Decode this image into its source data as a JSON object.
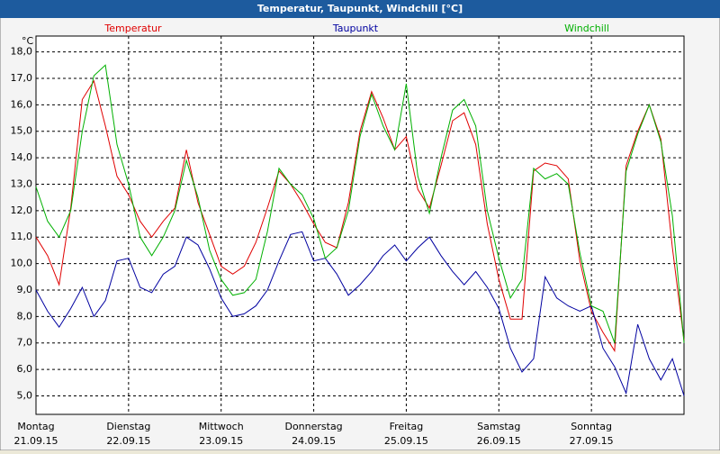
{
  "chart_data": {
    "type": "line",
    "title": "Temperatur, Taupunkt, Windchill [°C]",
    "y_unit": "°C",
    "x": [
      0,
      3,
      6,
      9,
      12,
      15,
      18,
      21,
      24,
      27,
      30,
      33,
      36,
      39,
      42,
      45,
      48,
      51,
      54,
      57,
      60,
      63,
      66,
      69,
      72,
      75,
      78,
      81,
      84,
      87,
      90,
      93,
      96,
      99,
      102,
      105,
      108,
      111,
      114,
      117,
      120,
      123,
      126,
      129,
      132,
      135,
      138,
      141,
      144,
      147,
      150,
      153,
      156,
      159,
      162,
      165,
      168
    ],
    "xlim": [
      0,
      168
    ],
    "xticks": [
      {
        "value": 0,
        "label": "Montag",
        "sublabel": "21.09.15"
      },
      {
        "value": 24,
        "label": "Dienstag",
        "sublabel": "22.09.15"
      },
      {
        "value": 48,
        "label": "Mittwoch",
        "sublabel": "23.09.15"
      },
      {
        "value": 72,
        "label": "Donnerstag",
        "sublabel": "24.09.15"
      },
      {
        "value": 96,
        "label": "Freitag",
        "sublabel": "25.09.15"
      },
      {
        "value": 120,
        "label": "Samstag",
        "sublabel": "26.09.15"
      },
      {
        "value": 144,
        "label": "Sonntag",
        "sublabel": "27.09.15"
      }
    ],
    "ylim": [
      4.3,
      18.6
    ],
    "yticks": [
      {
        "value": 5,
        "label": "5,0"
      },
      {
        "value": 6,
        "label": "6,0"
      },
      {
        "value": 7,
        "label": "7,0"
      },
      {
        "value": 8,
        "label": "8,0"
      },
      {
        "value": 9,
        "label": "9,0"
      },
      {
        "value": 10,
        "label": "10,0"
      },
      {
        "value": 11,
        "label": "11,0"
      },
      {
        "value": 12,
        "label": "12,0"
      },
      {
        "value": 13,
        "label": "13,0"
      },
      {
        "value": 14,
        "label": "14,0"
      },
      {
        "value": 15,
        "label": "15,0"
      },
      {
        "value": 16,
        "label": "16,0"
      },
      {
        "value": 17,
        "label": "17,0"
      },
      {
        "value": 18,
        "label": "18,0"
      }
    ],
    "grid": true,
    "series": [
      {
        "name": "Temperatur",
        "color": "#e00000",
        "values": [
          11.0,
          10.3,
          9.2,
          12.1,
          16.2,
          16.9,
          15.2,
          13.3,
          12.6,
          11.6,
          11.0,
          11.6,
          12.1,
          14.3,
          12.3,
          11.1,
          9.9,
          9.6,
          9.9,
          10.8,
          12.1,
          13.5,
          13.0,
          12.3,
          11.5,
          10.8,
          10.6,
          12.3,
          15.0,
          16.5,
          15.5,
          14.3,
          14.8,
          12.8,
          12.1,
          13.7,
          15.4,
          15.7,
          14.5,
          11.5,
          9.4,
          7.9,
          7.9,
          13.5,
          13.8,
          13.7,
          13.2,
          10.1,
          8.2,
          7.4,
          6.7,
          13.7,
          15.0,
          16.0,
          14.7,
          10.6,
          7.1
        ]
      },
      {
        "name": "Taupunkt",
        "color": "#0000a0",
        "values": [
          9.0,
          8.2,
          7.6,
          8.3,
          9.1,
          8.0,
          8.6,
          10.1,
          10.2,
          9.1,
          8.9,
          9.6,
          9.9,
          11.0,
          10.7,
          9.8,
          8.7,
          8.0,
          8.1,
          8.4,
          9.0,
          10.1,
          11.1,
          11.2,
          10.1,
          10.2,
          9.6,
          8.8,
          9.2,
          9.7,
          10.3,
          10.7,
          10.1,
          10.6,
          11.0,
          10.3,
          9.7,
          9.2,
          9.7,
          9.1,
          8.3,
          6.8,
          5.9,
          6.4,
          9.5,
          8.7,
          8.4,
          8.2,
          8.4,
          6.8,
          6.1,
          5.1,
          7.7,
          6.4,
          5.6,
          6.4,
          5.0
        ]
      },
      {
        "name": "Windchill",
        "color": "#00b000",
        "values": [
          12.9,
          11.6,
          11.0,
          12.0,
          15.0,
          17.1,
          17.5,
          14.5,
          13.0,
          11.0,
          10.3,
          11.0,
          12.0,
          13.9,
          12.5,
          10.5,
          9.4,
          8.8,
          8.9,
          9.4,
          11.2,
          13.6,
          13.0,
          12.6,
          11.7,
          10.2,
          10.6,
          12.0,
          14.8,
          16.4,
          15.2,
          14.3,
          16.8,
          13.3,
          11.9,
          14.0,
          15.8,
          16.2,
          15.2,
          12.0,
          10.2,
          8.7,
          9.4,
          13.6,
          13.2,
          13.4,
          13.0,
          10.4,
          8.4,
          8.2,
          7.0,
          13.5,
          14.9,
          16.0,
          14.6,
          11.8,
          7.0
        ]
      }
    ]
  }
}
